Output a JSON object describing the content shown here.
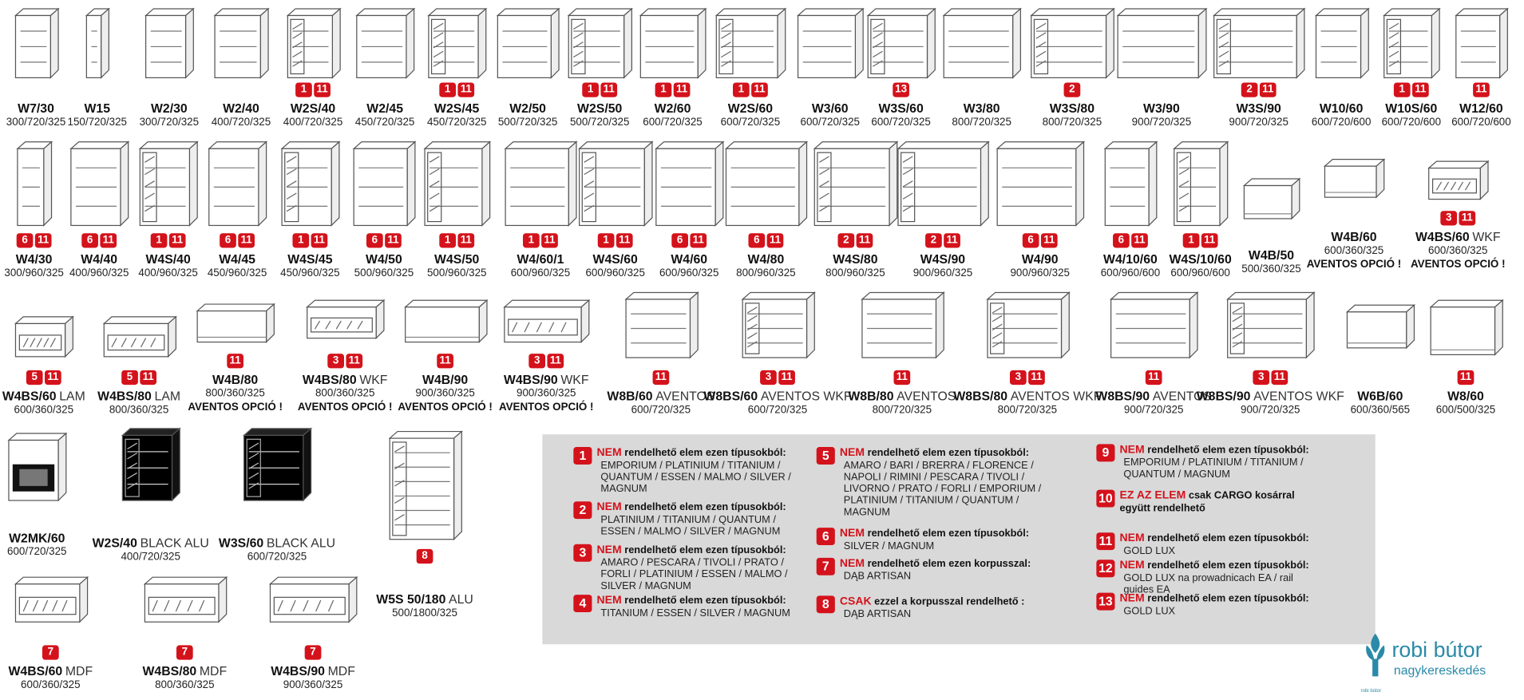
{
  "items": [
    {
      "code": "W7/30",
      "dims": "300/720/325",
      "badges": []
    },
    {
      "code": "W15",
      "dims": "150/720/325",
      "badges": []
    },
    {
      "code": "W2/30",
      "dims": "300/720/325",
      "badges": []
    },
    {
      "code": "W2/40",
      "dims": "400/720/325",
      "badges": []
    },
    {
      "code": "W2S/40",
      "dims": "400/720/325",
      "badges": [
        1,
        11
      ]
    },
    {
      "code": "W2/45",
      "dims": "450/720/325",
      "badges": []
    },
    {
      "code": "W2S/45",
      "dims": "450/720/325",
      "badges": [
        1,
        11
      ]
    },
    {
      "code": "W2/50",
      "dims": "500/720/325",
      "badges": []
    },
    {
      "code": "W2S/50",
      "dims": "500/720/325",
      "badges": [
        1,
        11
      ]
    },
    {
      "code": "W2/60",
      "dims": "600/720/325",
      "badges": [
        1,
        11
      ]
    },
    {
      "code": "W2S/60",
      "dims": "600/720/325",
      "badges": [
        1,
        11
      ]
    },
    {
      "code": "W3/60",
      "dims": "600/720/325",
      "badges": []
    },
    {
      "code": "W3S/60",
      "dims": "600/720/325",
      "badges": [
        13
      ]
    },
    {
      "code": "W3/80",
      "dims": "800/720/325",
      "badges": []
    },
    {
      "code": "W3S/80",
      "dims": "800/720/325",
      "badges": [
        2
      ]
    },
    {
      "code": "W3/90",
      "dims": "900/720/325",
      "badges": []
    },
    {
      "code": "W3S/90",
      "dims": "900/720/325",
      "badges": [
        2,
        11
      ]
    },
    {
      "code": "W10/60",
      "dims": "600/720/600",
      "badges": []
    },
    {
      "code": "W10S/60",
      "dims": "600/720/600",
      "badges": [
        1,
        11
      ]
    },
    {
      "code": "W12/60",
      "dims": "600/720/600",
      "badges": [
        11
      ]
    },
    {
      "code": "W4/30",
      "dims": "300/960/325",
      "badges": [
        6,
        11
      ]
    },
    {
      "code": "W4/40",
      "dims": "400/960/325",
      "badges": [
        6,
        11
      ]
    },
    {
      "code": "W4S/40",
      "dims": "400/960/325",
      "badges": [
        1,
        11
      ]
    },
    {
      "code": "W4/45",
      "dims": "450/960/325",
      "badges": [
        6,
        11
      ]
    },
    {
      "code": "W4S/45",
      "dims": "450/960/325",
      "badges": [
        1,
        11
      ]
    },
    {
      "code": "W4/50",
      "dims": "500/960/325",
      "badges": [
        6,
        11
      ]
    },
    {
      "code": "W4S/50",
      "dims": "500/960/325",
      "badges": [
        1,
        11
      ]
    },
    {
      "code": "W4/60/1",
      "dims": "600/960/325",
      "badges": [
        1,
        11
      ]
    },
    {
      "code": "W4S/60",
      "dims": "600/960/325",
      "badges": [
        1,
        11
      ]
    },
    {
      "code": "W4/60",
      "dims": "600/960/325",
      "badges": [
        6,
        11
      ]
    },
    {
      "code": "W4/80",
      "dims": "800/960/325",
      "badges": [
        6,
        11
      ]
    },
    {
      "code": "W4S/80",
      "dims": "800/960/325",
      "badges": [
        2,
        11
      ]
    },
    {
      "code": "W4S/90",
      "dims": "900/960/325",
      "badges": [
        2,
        11
      ]
    },
    {
      "code": "W4/90",
      "dims": "900/960/325",
      "badges": [
        6,
        11
      ]
    },
    {
      "code": "W4/10/60",
      "dims": "600/960/600",
      "badges": [
        6,
        11
      ]
    },
    {
      "code": "W4S/10/60",
      "dims": "600/960/600",
      "badges": [
        1,
        11
      ]
    },
    {
      "code": "W4B/50",
      "dims": "500/360/325",
      "badges": []
    },
    {
      "code": "W4B/60",
      "dims": "600/360/325",
      "badges": [],
      "note": "AVENTOS OPCIÓ !"
    },
    {
      "code": "W4BS/60",
      "suffix": "WKF",
      "dims": "600/360/325",
      "badges": [
        3,
        11
      ],
      "note": "AVENTOS OPCIÓ !"
    },
    {
      "code": "W4BS/60",
      "suffix": "LAM",
      "dims": "600/360/325",
      "badges": [
        5,
        11
      ]
    },
    {
      "code": "W4BS/80",
      "suffix": "LAM",
      "dims": "800/360/325",
      "badges": [
        5,
        11
      ]
    },
    {
      "code": "W4B/80",
      "dims": "800/360/325",
      "badges": [
        11
      ],
      "note": "AVENTOS OPCIÓ !"
    },
    {
      "code": "W4BS/80",
      "suffix": "WKF",
      "dims": "800/360/325",
      "badges": [
        3,
        11
      ],
      "note": "AVENTOS OPCIÓ !"
    },
    {
      "code": "W4B/90",
      "dims": "900/360/325",
      "badges": [
        11
      ],
      "note": "AVENTOS OPCIÓ !"
    },
    {
      "code": "W4BS/90",
      "suffix": "WKF",
      "dims": "900/360/325",
      "badges": [
        3,
        11
      ],
      "note": "AVENTOS OPCIÓ !"
    },
    {
      "code": "W8B/60",
      "suffix": "AVENTOS",
      "dims": "600/720/325",
      "badges": [
        11
      ]
    },
    {
      "code": "W8BS/60",
      "suffix": "AVENTOS WKF",
      "dims": "600/720/325",
      "badges": [
        3,
        11
      ]
    },
    {
      "code": "W8B/80",
      "suffix": "AVENTOS",
      "dims": "800/720/325",
      "badges": [
        11
      ]
    },
    {
      "code": "W8BS/80",
      "suffix": "AVENTOS WKF",
      "dims": "800/720/325",
      "badges": [
        3,
        11
      ]
    },
    {
      "code": "W8BS/90",
      "suffix": "AVENTOS",
      "dims": "900/720/325",
      "badges": [
        11
      ]
    },
    {
      "code": "W8BS/90",
      "suffix": "AVENTOS WKF",
      "dims": "900/720/325",
      "badges": [
        3,
        11
      ]
    },
    {
      "code": "W6B/60",
      "dims": "600/360/565",
      "badges": []
    },
    {
      "code": "W8/60",
      "dims": "600/500/325",
      "badges": [
        11
      ]
    },
    {
      "code": "W2MK/60",
      "dims": "600/720/325",
      "badges": []
    },
    {
      "code": "W2S/40",
      "suffix": "BLACK ALU",
      "dims": "400/720/325",
      "badges": []
    },
    {
      "code": "W3S/60",
      "suffix": "BLACK ALU",
      "dims": "600/720/325",
      "badges": []
    },
    {
      "code": "W5S 50/180",
      "suffix": "ALU",
      "dims": "500/1800/325",
      "badges": [
        8
      ]
    },
    {
      "code": "W4BS/60",
      "suffix": "MDF",
      "dims": "600/360/325",
      "badges": [
        7
      ]
    },
    {
      "code": "W4BS/80",
      "suffix": "MDF",
      "dims": "800/360/325",
      "badges": [
        7
      ]
    },
    {
      "code": "W4BS/90",
      "suffix": "MDF",
      "dims": "900/360/325",
      "badges": [
        7
      ]
    }
  ],
  "legend": [
    {
      "num": 1,
      "highlight": "NEM",
      "text": "rendelhető elem ezen típusokból:",
      "detail": "EMPORIUM / PLATINIUM / TITANIUM / QUANTUM / ESSEN / MALMO / SILVER / MAGNUM"
    },
    {
      "num": 2,
      "highlight": "NEM",
      "text": "rendelhető elem ezen típusokból:",
      "detail": "PLATINIUM / TITANIUM / QUANTUM / ESSEN / MALMO / SILVER / MAGNUM"
    },
    {
      "num": 3,
      "highlight": "NEM",
      "text": "rendelhető elem ezen típusokból:",
      "detail": "AMARO / PESCARA / TIVOLI / PRATO / FORLI / PLATINIUM / ESSEN / MALMO / SILVER / MAGNUM"
    },
    {
      "num": 4,
      "highlight": "NEM",
      "text": "rendelhető elem ezen típusokból:",
      "detail": "TITANIUM /  ESSEN / SILVER / MAGNUM"
    },
    {
      "num": 5,
      "highlight": "NEM",
      "text": "rendelhető elem ezen típusokból:",
      "detail": "AMARO / BARI / BRERRA / FLORENCE / NAPOLI / RIMINI / PESCARA / TIVOLI / LIVORNO / PRATO / FORLI / EMPORIUM / PLATINIUM / TITANIUM / QUANTUM / MAGNUM"
    },
    {
      "num": 6,
      "highlight": "NEM",
      "text": "rendelhető elem ezen típusokból:",
      "detail": "SILVER / MAGNUM"
    },
    {
      "num": 7,
      "highlight": "NEM",
      "text": "rendelhető elem ezen korpusszal:",
      "detail": "DĄB ARTISAN"
    },
    {
      "num": 8,
      "highlight": "CSAK",
      "text": "ezzel a korpusszal rendelhető :",
      "detail": "DĄB ARTISAN"
    },
    {
      "num": 9,
      "highlight": "NEM",
      "text": "rendelhető elem ezen típusokból:",
      "detail": "EMPORIUM / PLATINIUM / TITANIUM / QUANTUM / MAGNUM"
    },
    {
      "num": 10,
      "highlight": "EZ AZ ELEM",
      "text": "csak CARGO kosárral  együtt rendelhető"
    },
    {
      "num": 11,
      "highlight": "NEM",
      "text": "rendelhető elem ezen típusokból:",
      "detail": "GOLD LUX"
    },
    {
      "num": 12,
      "highlight": "NEM",
      "text": "rendelhető elem ezen típusokból:",
      "detail": "GOLD LUX na prowadnicach EA / rail guides EA"
    },
    {
      "num": 13,
      "highlight": "NEM",
      "text": "rendelhető elem ezen típusokból:",
      "detail": "GOLD LUX"
    }
  ],
  "logo": {
    "name": "robi bútor",
    "tagline": "nagykereskedés",
    "small": "robi bútor"
  }
}
